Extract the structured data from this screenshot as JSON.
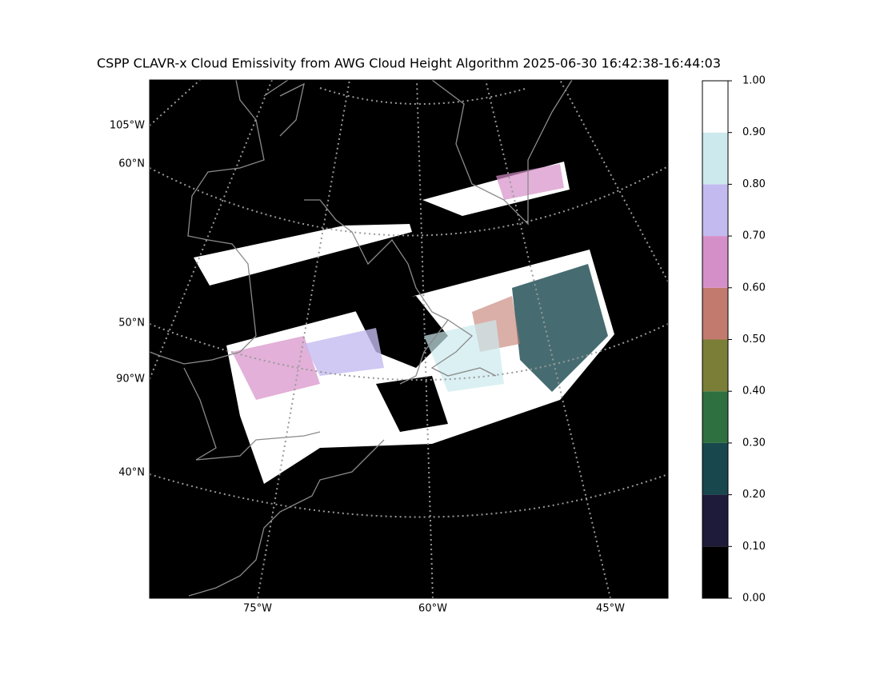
{
  "title": "CSPP CLAVR-x Cloud Emissivity from AWG Cloud Height Algorithm 2025-06-30 16:42:38-16:44:03",
  "map": {
    "left_labels": [
      "105°W",
      "60°N",
      "50°N",
      "90°W",
      "40°N"
    ],
    "bottom_labels": [
      "75°W",
      "60°W",
      "45°W"
    ]
  },
  "colorbar": {
    "lim": [
      0,
      1
    ],
    "ticks": [
      {
        "value": 0,
        "label": "0.00"
      },
      {
        "value": 0.1,
        "label": "0.10"
      },
      {
        "value": 0.2,
        "label": "0.20"
      },
      {
        "value": 0.3,
        "label": "0.30"
      },
      {
        "value": 0.4,
        "label": "0.40"
      },
      {
        "value": 0.5,
        "label": "0.50"
      },
      {
        "value": 0.6,
        "label": "0.60"
      },
      {
        "value": 0.7,
        "label": "0.70"
      },
      {
        "value": 0.8,
        "label": "0.80"
      },
      {
        "value": 0.9,
        "label": "0.90"
      },
      {
        "value": 1,
        "label": "1.00"
      }
    ],
    "colors": [
      "#000000",
      "#1e1a3a",
      "#18474e",
      "#2e7040",
      "#7b7e37",
      "#c27a6e",
      "#d58fc8",
      "#c3bbf0",
      "#cceaee",
      "#ffffff"
    ]
  }
}
